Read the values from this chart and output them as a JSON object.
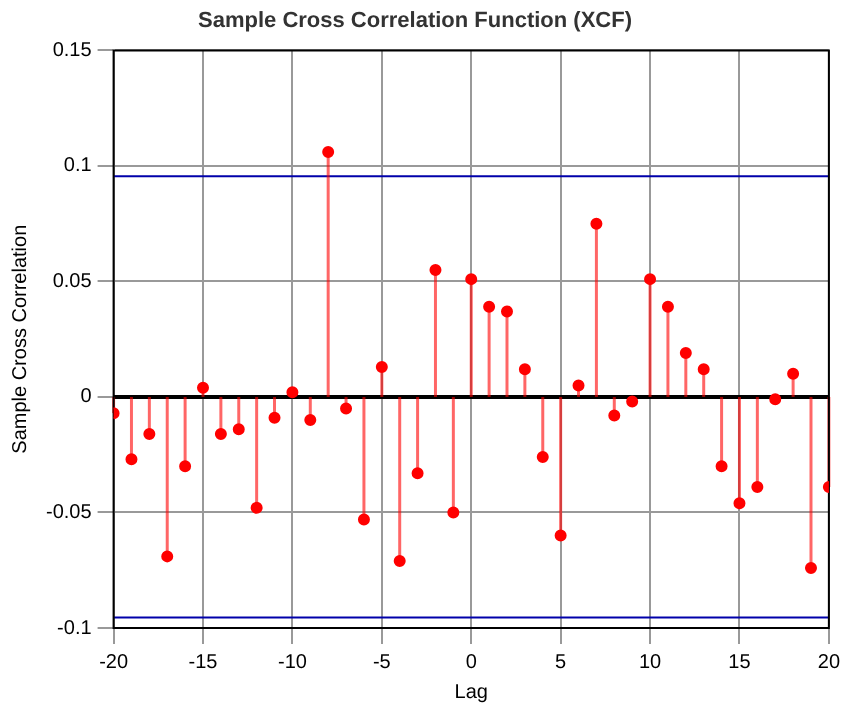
{
  "chart_data": {
    "type": "lollipop",
    "title": "Sample Cross Correlation Function (XCF)",
    "xlabel": "Lag",
    "ylabel": "Sample Cross Correlation",
    "x": [
      -20,
      -19,
      -18,
      -17,
      -16,
      -15,
      -14,
      -13,
      -12,
      -11,
      -10,
      -9,
      -8,
      -7,
      -6,
      -5,
      -4,
      -3,
      -2,
      -1,
      0,
      1,
      2,
      3,
      4,
      5,
      6,
      7,
      8,
      9,
      10,
      11,
      12,
      13,
      14,
      15,
      16,
      17,
      18,
      19,
      20
    ],
    "values": [
      -0.007,
      -0.027,
      -0.016,
      -0.069,
      -0.03,
      0.004,
      -0.016,
      -0.014,
      -0.048,
      -0.009,
      0.002,
      -0.01,
      0.106,
      -0.005,
      -0.053,
      0.013,
      -0.071,
      -0.033,
      0.055,
      -0.05,
      0.051,
      0.039,
      0.037,
      0.012,
      -0.026,
      -0.06,
      0.005,
      0.075,
      -0.008,
      -0.002,
      0.051,
      0.039,
      0.019,
      0.012,
      -0.03,
      -0.046,
      -0.039,
      -0.001,
      0.01,
      -0.074,
      -0.039
    ],
    "color": "#ff0000",
    "marker": "circle",
    "xlim": [
      -20,
      20
    ],
    "xticks": [
      -20,
      -15,
      -10,
      -5,
      0,
      5,
      10,
      15,
      20
    ],
    "ylim": [
      -0.1,
      0.15
    ],
    "yticks": [
      -0.1,
      -0.05,
      0,
      0.05,
      0.1,
      0.15
    ],
    "ref_lines": [
      {
        "axis": "y",
        "value": 0.0955,
        "color": "#0000aa"
      },
      {
        "axis": "y",
        "value": -0.0955,
        "color": "#0000aa"
      },
      {
        "axis": "y",
        "value": 0,
        "color": "#000000"
      }
    ],
    "grid": true
  }
}
